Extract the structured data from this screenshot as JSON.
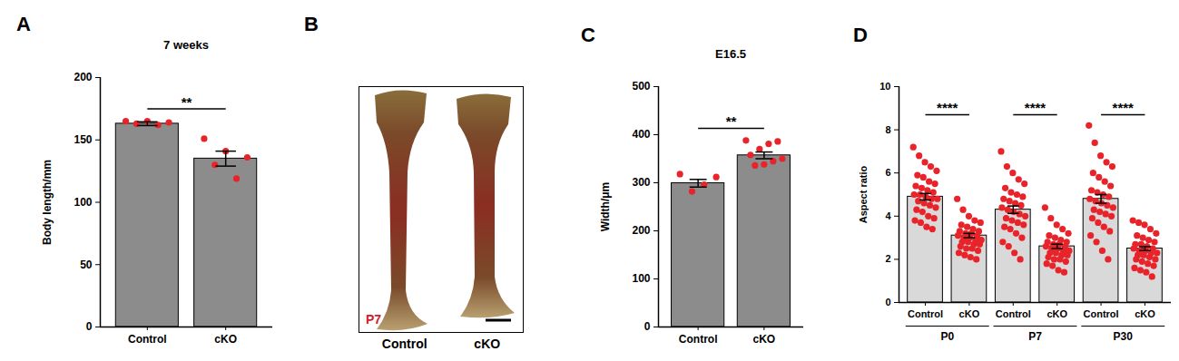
{
  "chart_data": [
    {
      "panel": "A",
      "type": "bar",
      "title": "7 weeks",
      "y_label": "Body length/mm",
      "categories": [
        "Control",
        "cKO"
      ],
      "values": [
        163,
        135
      ],
      "errors": [
        1.5,
        6
      ],
      "points": [
        [
          165,
          165,
          164,
          163,
          162
        ],
        [
          151,
          141,
          136,
          130,
          119
        ]
      ],
      "color": "#8c8c8c",
      "ylim": [
        0,
        200
      ],
      "yticks": [
        0,
        50,
        100,
        150,
        200
      ],
      "comparisons": [
        {
          "pair": [
            0,
            1
          ],
          "label": "**"
        }
      ]
    },
    {
      "panel": "B",
      "type": "image",
      "label": "P7",
      "categories": [
        "Control",
        "cKO"
      ]
    },
    {
      "panel": "C",
      "type": "bar",
      "title": "E16.5",
      "y_label": "Width/μm",
      "categories": [
        "Control",
        "cKO"
      ],
      "values": [
        299,
        357
      ],
      "errors": [
        8,
        7
      ],
      "points": [
        [
          318,
          312,
          296,
          282
        ],
        [
          388,
          386,
          381,
          370,
          358,
          350,
          345,
          338,
          336
        ]
      ],
      "color": "#8c8c8c",
      "ylim": [
        0,
        500
      ],
      "yticks": [
        0,
        100,
        200,
        300,
        400,
        500
      ],
      "comparisons": [
        {
          "pair": [
            0,
            1
          ],
          "label": "**"
        }
      ]
    },
    {
      "panel": "D",
      "type": "bar",
      "y_label": "Aspect ratio",
      "categories": [
        "Control",
        "cKO",
        "Control",
        "cKO",
        "Control",
        "cKO"
      ],
      "groups": [
        "P0",
        "P0",
        "P7",
        "P7",
        "P30",
        "P30"
      ],
      "values": [
        4.9,
        3.1,
        4.3,
        2.6,
        4.8,
        2.5
      ],
      "errors": [
        0.15,
        0.1,
        0.17,
        0.1,
        0.2,
        0.09
      ],
      "points": [
        [
          7.2,
          6.8,
          6.5,
          6.3,
          6.1,
          5.9,
          5.8,
          5.6,
          5.5,
          5.4,
          5.3,
          5.2,
          5.1,
          5.0,
          5.0,
          4.9,
          4.8,
          4.8,
          4.7,
          4.6,
          4.5,
          4.4,
          4.3,
          4.2,
          4.0,
          3.9,
          3.8,
          3.7,
          3.5,
          3.4
        ],
        [
          4.8,
          4.3,
          4.0,
          3.8,
          3.7,
          3.6,
          3.5,
          3.4,
          3.3,
          3.3,
          3.2,
          3.2,
          3.1,
          3.1,
          3.0,
          3.0,
          2.9,
          2.9,
          2.8,
          2.8,
          2.7,
          2.7,
          2.6,
          2.5,
          2.5,
          2.4,
          2.3,
          2.2,
          2.1,
          2.0
        ],
        [
          7.0,
          6.3,
          6.0,
          5.7,
          5.5,
          5.3,
          5.1,
          5.0,
          4.9,
          4.8,
          4.7,
          4.6,
          4.5,
          4.4,
          4.3,
          4.2,
          4.1,
          4.0,
          3.9,
          3.8,
          3.7,
          3.6,
          3.5,
          3.4,
          3.2,
          3.0,
          2.8,
          2.6,
          2.3,
          2.0
        ],
        [
          4.4,
          3.9,
          3.6,
          3.4,
          3.2,
          3.1,
          3.0,
          2.9,
          2.8,
          2.8,
          2.7,
          2.7,
          2.6,
          2.6,
          2.5,
          2.5,
          2.4,
          2.4,
          2.3,
          2.3,
          2.2,
          2.2,
          2.1,
          2.0,
          2.0,
          1.9,
          1.8,
          1.7,
          1.5,
          1.4
        ],
        [
          8.2,
          7.4,
          6.8,
          6.5,
          6.3,
          6.0,
          5.8,
          5.6,
          5.4,
          5.2,
          5.1,
          5.0,
          4.9,
          4.8,
          4.7,
          4.6,
          4.5,
          4.4,
          4.3,
          4.2,
          4.1,
          4.0,
          3.9,
          3.7,
          3.5,
          3.3,
          3.1,
          2.8,
          2.4,
          2.0
        ],
        [
          3.8,
          3.7,
          3.6,
          3.4,
          3.2,
          3.1,
          3.0,
          2.9,
          2.8,
          2.7,
          2.7,
          2.6,
          2.5,
          2.5,
          2.4,
          2.4,
          2.3,
          2.3,
          2.2,
          2.2,
          2.1,
          2.0,
          2.0,
          1.9,
          1.8,
          1.7,
          1.6,
          1.5,
          1.4,
          1.2
        ]
      ],
      "color": "#d9d9d9",
      "ylim": [
        0,
        10
      ],
      "yticks": [
        0,
        2,
        4,
        6,
        8,
        10
      ],
      "comparisons": [
        {
          "pair": [
            0,
            1
          ],
          "label": "****"
        },
        {
          "pair": [
            2,
            3
          ],
          "label": "****"
        },
        {
          "pair": [
            4,
            5
          ],
          "label": "****"
        }
      ]
    }
  ]
}
